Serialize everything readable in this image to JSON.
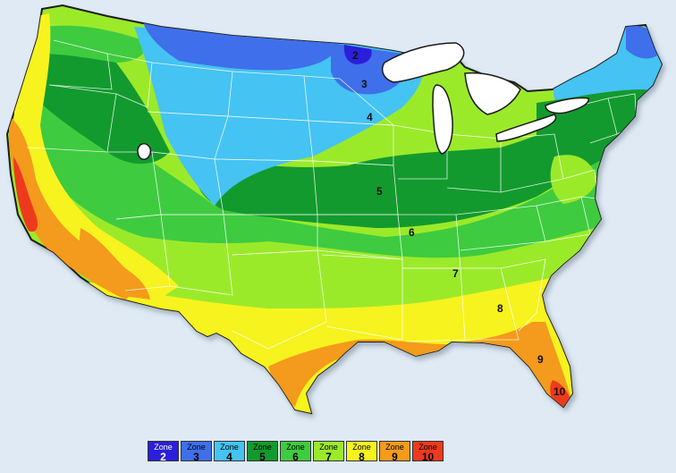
{
  "zones": [
    {
      "word": "Zone",
      "number": "2",
      "color": "#2b1fd9",
      "text_color": "#ffffff"
    },
    {
      "word": "Zone",
      "number": "3",
      "color": "#3f6fea",
      "text_color": "#000000"
    },
    {
      "word": "Zone",
      "number": "4",
      "color": "#45c3f2",
      "text_color": "#000000"
    },
    {
      "word": "Zone",
      "number": "5",
      "color": "#139a2e",
      "text_color": "#000000"
    },
    {
      "word": "Zone",
      "number": "6",
      "color": "#3fcb3f",
      "text_color": "#000000"
    },
    {
      "word": "Zone",
      "number": "7",
      "color": "#9bea2a",
      "text_color": "#000000"
    },
    {
      "word": "Zone",
      "number": "8",
      "color": "#f7f31f",
      "text_color": "#000000"
    },
    {
      "word": "Zone",
      "number": "9",
      "color": "#f49a1c",
      "text_color": "#000000"
    },
    {
      "word": "Zone",
      "number": "10",
      "color": "#ee3a1c",
      "text_color": "#000000"
    }
  ],
  "map_labels": {
    "z2": "2",
    "z3": "3",
    "z4": "4",
    "z5": "5",
    "z6": "6",
    "z7": "7",
    "z8": "8",
    "z9": "9",
    "z10": "10"
  },
  "colors": {
    "background": "#dfeaf4",
    "lakes": "#ffffff",
    "outline": "#1a1a1a",
    "state_lines": "#ffffff"
  }
}
